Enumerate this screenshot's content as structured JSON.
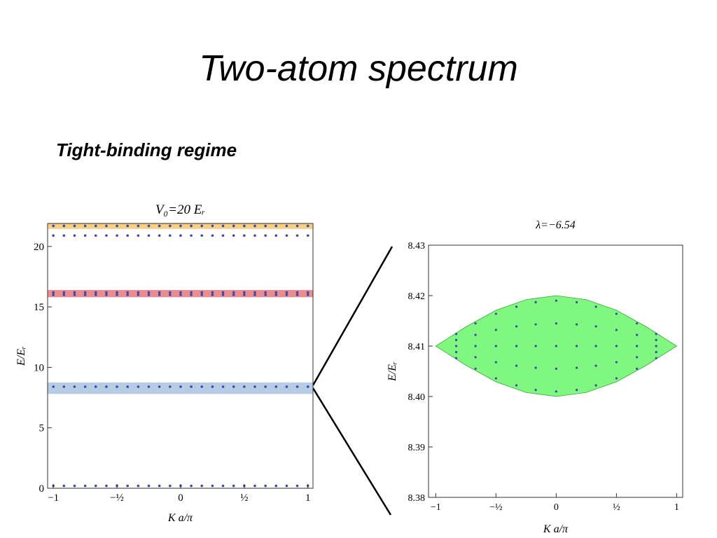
{
  "header": {
    "title": "Two-atom spectrum",
    "subtitle": "Tight-binding regime"
  },
  "chart_data": [
    {
      "type": "scatter",
      "title": "V₀=20 Eᵣ",
      "x_label": "K a/π",
      "y_label": "E/Eᵣ",
      "xlim": [
        -1.045,
        1.04
      ],
      "ylim": [
        0,
        21.9
      ],
      "xticks": [
        {
          "value": -1,
          "label": "−1"
        },
        {
          "value": -0.5,
          "label": "−½"
        },
        0,
        {
          "value": 0.5,
          "label": "½"
        },
        1
      ],
      "yticks": [
        0,
        5,
        10,
        15,
        20
      ],
      "highlights": [
        {
          "from": 21.45,
          "to": 21.9,
          "color": "#f6c56f"
        },
        {
          "from": 15.8,
          "to": 16.4,
          "color": "#e8787a"
        },
        {
          "from": 7.8,
          "to": 8.75,
          "color": "#a9c3e0"
        }
      ],
      "x": [
        -1,
        -0.9167,
        -0.8333,
        -0.75,
        -0.6667,
        -0.5833,
        -0.5,
        -0.4167,
        -0.3333,
        -0.25,
        -0.1667,
        -0.0833,
        0,
        0.0833,
        0.1667,
        0.25,
        0.3333,
        0.4167,
        0.5,
        0.5833,
        0.6667,
        0.75,
        0.8333,
        0.9167,
        1
      ],
      "series": [
        {
          "color": "#3949ab",
          "values": [
            0.2,
            0.2,
            0.2,
            0.2,
            0.2,
            0.2,
            0.2,
            0.2,
            0.2,
            0.2,
            0.2,
            0.2,
            0.2,
            0.2,
            0.2,
            0.2,
            0.2,
            0.2,
            0.2,
            0.2,
            0.2,
            0.2,
            0.2,
            0.2,
            0.2
          ]
        },
        {
          "color": "#3949ab",
          "values": [
            8.4,
            8.4,
            8.4,
            8.4,
            8.4,
            8.4,
            8.4,
            8.4,
            8.4,
            8.4,
            8.4,
            8.4,
            8.4,
            8.4,
            8.4,
            8.4,
            8.4,
            8.4,
            8.4,
            8.4,
            8.4,
            8.4,
            8.4,
            8.4,
            8.4
          ]
        },
        {
          "color": "#3949ab",
          "values": [
            16.0,
            16.0,
            16.0,
            16.0,
            16.0,
            16.0,
            16.0,
            16.0,
            16.0,
            16.0,
            16.0,
            16.0,
            16.0,
            16.0,
            16.0,
            16.0,
            16.0,
            16.0,
            16.0,
            16.0,
            16.0,
            16.0,
            16.0,
            16.0,
            16.0
          ]
        },
        {
          "color": "#3949ab",
          "values": [
            16.2,
            16.2,
            16.2,
            16.2,
            16.2,
            16.2,
            16.2,
            16.2,
            16.2,
            16.2,
            16.2,
            16.2,
            16.2,
            16.2,
            16.2,
            16.2,
            16.2,
            16.2,
            16.2,
            16.2,
            16.2,
            16.2,
            16.2,
            16.2,
            16.2
          ]
        },
        {
          "color": "#3949ab",
          "values": [
            20.9,
            20.9,
            20.9,
            20.9,
            20.9,
            20.9,
            20.9,
            20.9,
            20.9,
            20.9,
            20.9,
            20.9,
            20.9,
            20.9,
            20.9,
            20.9,
            20.9,
            20.9,
            20.9,
            20.9,
            20.9,
            20.9,
            20.9,
            20.9,
            20.9
          ]
        },
        {
          "color": "#3949ab",
          "values": [
            21.7,
            21.7,
            21.7,
            21.7,
            21.7,
            21.7,
            21.7,
            21.7,
            21.7,
            21.7,
            21.7,
            21.7,
            21.7,
            21.7,
            21.7,
            21.7,
            21.7,
            21.7,
            21.7,
            21.7,
            21.7,
            21.7,
            21.7,
            21.7,
            21.7
          ]
        }
      ]
    },
    {
      "type": "scatter",
      "title": "λ=−6.54",
      "x_label": "K a/π",
      "y_label": "E/Eᵣ",
      "xlim": [
        -1.06,
        1.05
      ],
      "ylim": [
        8.38,
        8.43
      ],
      "xticks": [
        {
          "value": -1,
          "label": "−1"
        },
        {
          "value": -0.5,
          "label": "−½"
        },
        0,
        {
          "value": 0.5,
          "label": "½"
        },
        1
      ],
      "yticks": [
        8.38,
        8.39,
        {
          "value": 8.4,
          "label": "8.40"
        },
        8.41,
        8.42,
        8.43
      ],
      "band": {
        "color": "#80f880",
        "x": [
          -1,
          -0.75,
          -0.5,
          -0.25,
          0,
          0.25,
          0.5,
          0.75,
          1
        ],
        "upper": [
          8.41,
          8.4138,
          8.4171,
          8.4192,
          8.42,
          8.4192,
          8.4171,
          8.4138,
          8.41
        ],
        "lower": [
          8.41,
          8.4062,
          8.4029,
          8.4008,
          8.4,
          8.4008,
          8.4029,
          8.4062,
          8.41
        ]
      },
      "color": "#3949ab",
      "x": [
        -0.83,
        -0.83,
        -0.83,
        -0.83,
        -0.83,
        -0.67,
        -0.67,
        -0.67,
        -0.67,
        -0.67,
        -0.5,
        -0.5,
        -0.5,
        -0.5,
        -0.5,
        -0.33,
        -0.33,
        -0.33,
        -0.33,
        -0.33,
        -0.17,
        -0.17,
        -0.17,
        -0.17,
        -0.17,
        0,
        0,
        0,
        0,
        0,
        0.17,
        0.17,
        0.17,
        0.17,
        0.17,
        0.33,
        0.33,
        0.33,
        0.33,
        0.33,
        0.5,
        0.5,
        0.5,
        0.5,
        0.5,
        0.67,
        0.67,
        0.67,
        0.67,
        0.67,
        0.83,
        0.83,
        0.83,
        0.83,
        0.83
      ],
      "values": [
        8.4124,
        8.4112,
        8.41,
        8.4088,
        8.4076,
        8.4145,
        8.4122,
        8.41,
        8.4078,
        8.4055,
        8.4164,
        8.4132,
        8.41,
        8.4068,
        8.4036,
        8.4178,
        8.4139,
        8.41,
        8.4061,
        8.4022,
        8.4187,
        8.4143,
        8.41,
        8.4057,
        8.4013,
        8.419,
        8.4145,
        8.41,
        8.4055,
        8.401,
        8.4187,
        8.4143,
        8.41,
        8.4057,
        8.4013,
        8.4178,
        8.4139,
        8.41,
        8.4061,
        8.4022,
        8.4164,
        8.4132,
        8.41,
        8.4068,
        8.4036,
        8.4145,
        8.4122,
        8.41,
        8.4078,
        8.4055,
        8.4124,
        8.4112,
        8.41,
        8.4088,
        8.4076
      ]
    }
  ]
}
